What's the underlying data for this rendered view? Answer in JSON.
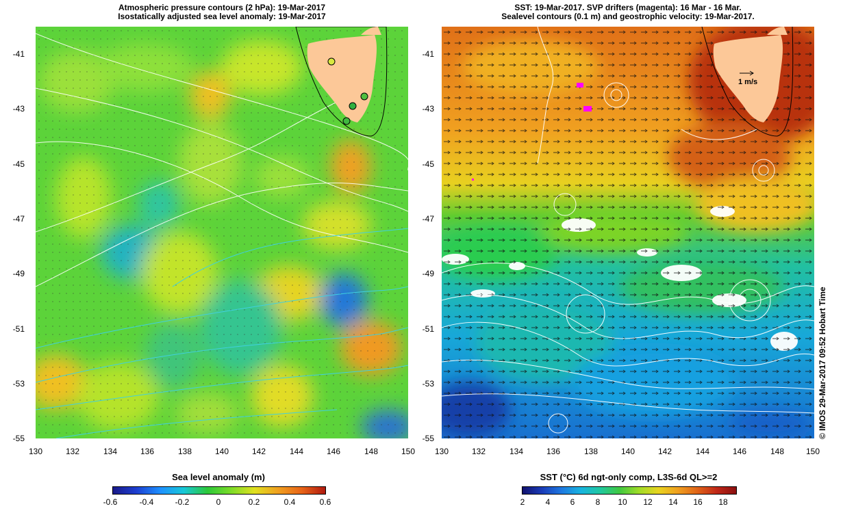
{
  "left_panel": {
    "title_line1": "Atmospheric pressure contours (2 hPa): 19-Mar-2017",
    "title_line2": "Isostatically adjusted sea level anomaly: 19-Mar-2017",
    "y_ticks": [
      "-41",
      "-43",
      "-45",
      "-47",
      "-49",
      "-51",
      "-53",
      "-55"
    ],
    "x_ticks": [
      "130",
      "132",
      "134",
      "136",
      "138",
      "140",
      "142",
      "144",
      "146",
      "148",
      "150"
    ],
    "colorbar_title": "Sea level anomaly (m)",
    "colorbar_ticks": [
      "-0.6",
      "-0.4",
      "-0.2",
      "0",
      "0.2",
      "0.4",
      "0.6"
    ],
    "colorbar_range": [
      -0.6,
      0.6
    ]
  },
  "right_panel": {
    "title_line1": "SST: 19-Mar-2017. SVP drifters (magenta): 16 Mar - 16 Mar.",
    "title_line2": "Sealevel contours (0.1 m) and geostrophic velocity: 19-Mar-2017.",
    "y_ticks": [
      "-41",
      "-43",
      "-45",
      "-47",
      "-49",
      "-51",
      "-53",
      "-55"
    ],
    "x_ticks": [
      "130",
      "132",
      "134",
      "136",
      "138",
      "140",
      "142",
      "144",
      "146",
      "148",
      "150"
    ],
    "velocity_scale_label": "1 m/s",
    "colorbar_title": "SST (°C) 6d ngt-only comp, L3S-6d QL>=2",
    "colorbar_ticks": [
      "2",
      "4",
      "6",
      "8",
      "10",
      "12",
      "14",
      "16",
      "18"
    ],
    "colorbar_range": [
      2,
      19
    ]
  },
  "map_extent": {
    "lon": [
      130,
      150
    ],
    "lat": [
      -55,
      -40
    ]
  },
  "credit": "© IMOS 29-Mar-2017 09:52 Hobart Time",
  "colors": {
    "land": "#fcc898",
    "pressure_contour": "#ffffff",
    "sla_contour": "#40d0e0",
    "drifters": "#ff00ff",
    "coastline": "#000000"
  }
}
